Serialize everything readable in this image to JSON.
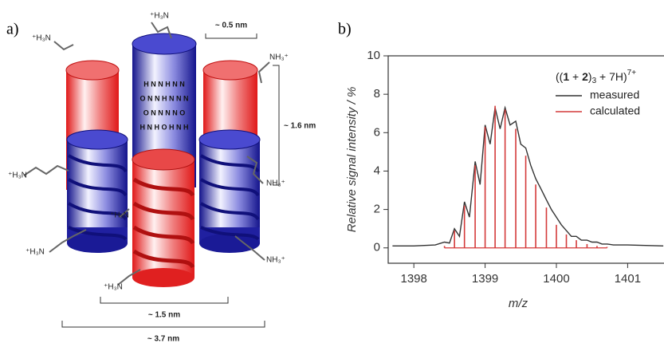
{
  "panel_a": {
    "panel_label": "a)",
    "ammonium_labels": [
      "⁺H₃N",
      "⁺H₃N",
      "NH₃⁺",
      "⁺H₃N",
      "NH₃⁺",
      "⁺H₃N",
      "⁺H₃N",
      "NH₃⁺",
      "⁺H₃N"
    ],
    "dimensions": [
      "~ 0.5 nm",
      "~ 1.6 nm",
      "~ 1.5 nm",
      "~ 3.7 nm"
    ],
    "chem_rows": [
      "H  N  N  H  N  N",
      "O  N  N  H  N  N  N",
      "O  N  N   N  N  O",
      "H  N  H   O  H  N  H"
    ]
  },
  "chart_data": {
    "type": "line",
    "panel_label": "b)",
    "xlabel": "m/z",
    "ylabel": "Relative signal intensity / %",
    "legend_title": [
      "((",
      "1",
      " + ",
      "2",
      ")",
      "3",
      " + 7H)",
      "7+"
    ],
    "legend": "upper right",
    "xlim": [
      1397.64,
      1401.51
    ],
    "ylim": [
      -0.8,
      10
    ],
    "xticks": [
      1398,
      1399,
      1400,
      1401
    ],
    "yticks": [
      0,
      2,
      4,
      6,
      8,
      10
    ],
    "series": [
      {
        "name": "measured",
        "color": "#333333",
        "style": "line",
        "x": [
          1397.7,
          1398.0,
          1398.3,
          1398.43,
          1398.5,
          1398.57,
          1398.64,
          1398.71,
          1398.78,
          1398.86,
          1398.93,
          1399.0,
          1399.07,
          1399.14,
          1399.21,
          1399.28,
          1399.35,
          1399.43,
          1399.5,
          1399.57,
          1399.64,
          1399.71,
          1399.78,
          1399.86,
          1399.93,
          1400.0,
          1400.07,
          1400.14,
          1400.21,
          1400.28,
          1400.35,
          1400.43,
          1400.5,
          1400.57,
          1400.64,
          1400.71,
          1400.8,
          1401.0,
          1401.5
        ],
        "values": [
          0.1,
          0.1,
          0.15,
          0.3,
          0.25,
          1.0,
          0.6,
          2.4,
          1.6,
          4.5,
          3.3,
          6.4,
          5.4,
          7.3,
          6.2,
          7.3,
          6.4,
          6.6,
          5.4,
          5.2,
          4.3,
          3.6,
          3.1,
          2.5,
          2.0,
          1.6,
          1.2,
          0.9,
          0.6,
          0.6,
          0.4,
          0.4,
          0.3,
          0.3,
          0.2,
          0.2,
          0.15,
          0.15,
          0.1
        ]
      },
      {
        "name": "calculated",
        "color": "#d43a3a",
        "style": "stick",
        "x": [
          1398.43,
          1398.57,
          1398.71,
          1398.86,
          1399.0,
          1399.14,
          1399.28,
          1399.43,
          1399.57,
          1399.71,
          1399.86,
          1400.0,
          1400.14,
          1400.28,
          1400.43,
          1400.57,
          1400.71
        ],
        "values": [
          0.1,
          0.9,
          2.2,
          4.3,
          6.3,
          7.4,
          7.2,
          6.2,
          4.8,
          3.3,
          2.1,
          1.2,
          0.7,
          0.4,
          0.2,
          0.1,
          0.05
        ]
      }
    ]
  }
}
